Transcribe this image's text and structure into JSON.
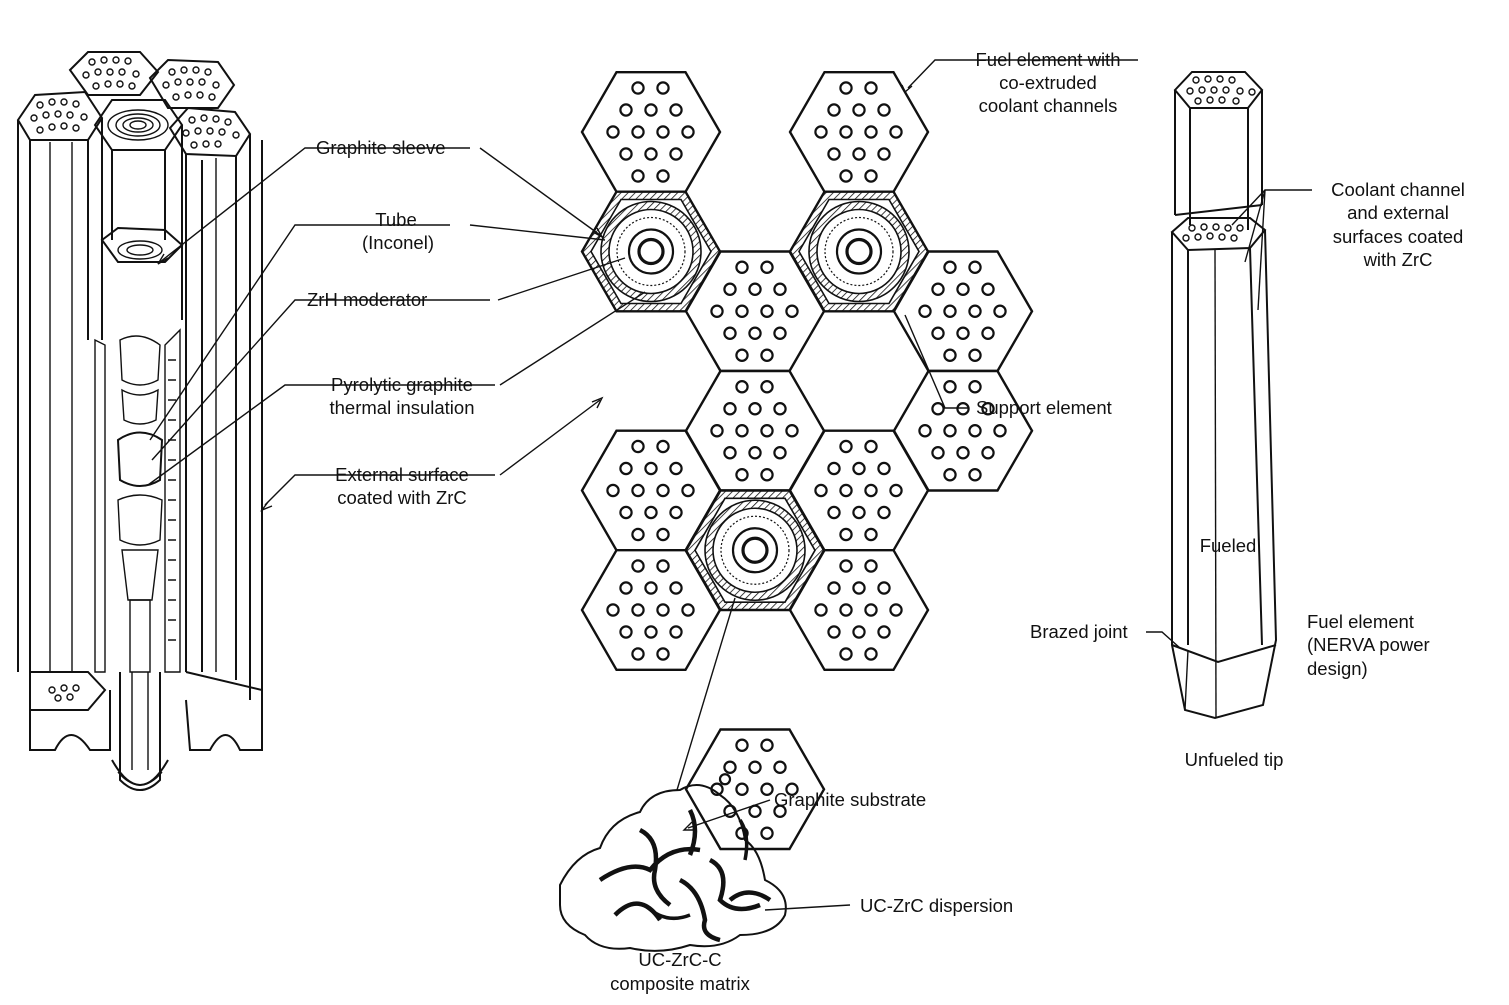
{
  "labels": {
    "graphite_sleeve": "Graphite sleeve",
    "tube_line1": "Tube",
    "tube_line2": "(Inconel)",
    "zrh_moderator": "ZrH moderator",
    "pyrolytic_line1": "Pyrolytic graphite",
    "pyrolytic_line2": "thermal insulation",
    "external_line1": "External surface",
    "external_line2": "coated with ZrC",
    "fuel_element_line1": "Fuel element with",
    "fuel_element_line2": "co-extruded",
    "fuel_element_line3": "coolant channels",
    "support_element": "Support element",
    "coolant_line1": "Coolant channel",
    "coolant_line2": "and external",
    "coolant_line3": "surfaces coated",
    "coolant_line4": "with ZrC",
    "fueled": "Fueled",
    "brazed_joint": "Brazed joint",
    "nerva_line1": "Fuel element",
    "nerva_line2": "(NERVA power",
    "nerva_line3": "design)",
    "unfueled_tip": "Unfueled tip",
    "graphite_substrate": "Graphite substrate",
    "dispersion": "UC-ZrC dispersion",
    "composite_line1": "UC-ZrC-C",
    "composite_line2": "composite matrix"
  },
  "hex_cluster": {
    "fuel_cells": [
      [
        0,
        0
      ],
      [
        0,
        2
      ],
      [
        1,
        1
      ],
      [
        1,
        3
      ],
      [
        2,
        1
      ],
      [
        2,
        3
      ],
      [
        3,
        0
      ],
      [
        3,
        2
      ],
      [
        4,
        0
      ],
      [
        4,
        2
      ],
      [
        5,
        1
      ]
    ],
    "support_cells": [
      [
        1,
        0
      ],
      [
        1,
        2
      ],
      [
        3,
        1
      ]
    ]
  }
}
